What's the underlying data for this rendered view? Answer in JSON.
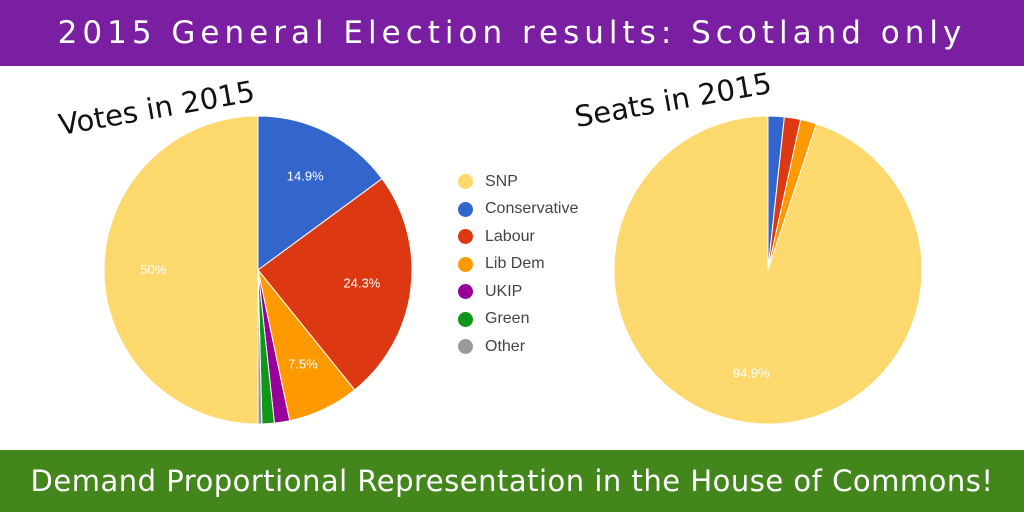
{
  "header": {
    "title": "2015 General Election results: Scotland only",
    "background": "#7B1FA2"
  },
  "footer": {
    "text": "Demand Proportional Representation in the House of Commons!",
    "background": "#43871C"
  },
  "legend": [
    {
      "label": "SNP",
      "color": "#FDD86D"
    },
    {
      "label": "Conservative",
      "color": "#3366CC"
    },
    {
      "label": "Labour",
      "color": "#DC3912"
    },
    {
      "label": "Lib Dem",
      "color": "#FF9900"
    },
    {
      "label": "UKIP",
      "color": "#990099"
    },
    {
      "label": "Green",
      "color": "#109618"
    },
    {
      "label": "Other",
      "color": "#999999"
    }
  ],
  "chart_data": [
    {
      "type": "pie",
      "title": "Votes in 2015",
      "categories": [
        "SNP",
        "Conservative",
        "Labour",
        "Lib Dem",
        "UKIP",
        "Green",
        "Other"
      ],
      "values": [
        50.0,
        14.9,
        24.3,
        7.5,
        1.6,
        1.3,
        0.4
      ],
      "slice_labels": [
        "50%",
        "14.9%",
        "24.3%",
        "7.5%",
        "",
        "",
        ""
      ],
      "start": "12 o'clock, clockwise from Conservative"
    },
    {
      "type": "pie",
      "title": "Seats in 2015",
      "categories": [
        "SNP",
        "Conservative",
        "Labour",
        "Lib Dem",
        "UKIP",
        "Green",
        "Other"
      ],
      "values": [
        94.9,
        1.7,
        1.7,
        1.7,
        0,
        0,
        0
      ],
      "slice_labels": [
        "94.9%",
        "",
        "",
        "",
        "",
        "",
        ""
      ],
      "start": "12 o'clock, clockwise from Conservative"
    }
  ]
}
